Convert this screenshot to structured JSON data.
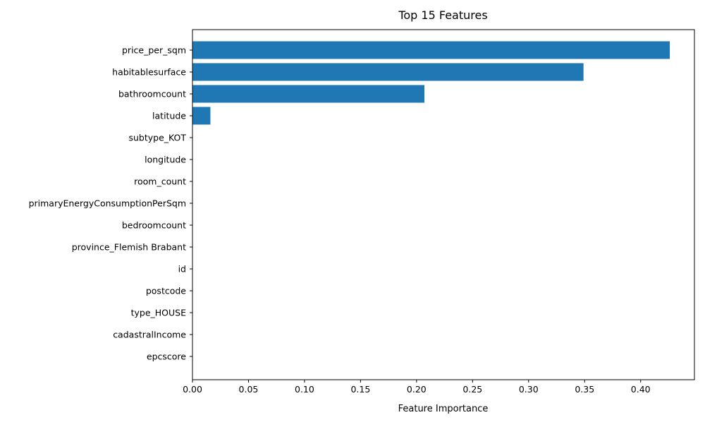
{
  "chart_data": {
    "type": "bar",
    "orientation": "horizontal",
    "title": "Top 15 Features",
    "xlabel": "Feature Importance",
    "ylabel": "",
    "categories": [
      "price_per_sqm",
      "habitablesurface",
      "bathroomcount",
      "latitude",
      "subtype_KOT",
      "longitude",
      "room_count",
      "primaryEnergyConsumptionPerSqm",
      "bedroomcount",
      "province_Flemish Brabant",
      "id",
      "postcode",
      "type_HOUSE",
      "cadastralIncome",
      "epcscore"
    ],
    "values": [
      0.426,
      0.349,
      0.207,
      0.016,
      0.0,
      0.0,
      0.0,
      0.0,
      0.0,
      0.0,
      0.0,
      0.0,
      0.0,
      0.0,
      0.0
    ],
    "xlim": [
      0,
      0.448
    ],
    "xticks": [
      "0.00",
      "0.05",
      "0.10",
      "0.15",
      "0.20",
      "0.25",
      "0.30",
      "0.35",
      "0.40"
    ],
    "grid": false,
    "bar_color": "#1f77b4"
  }
}
